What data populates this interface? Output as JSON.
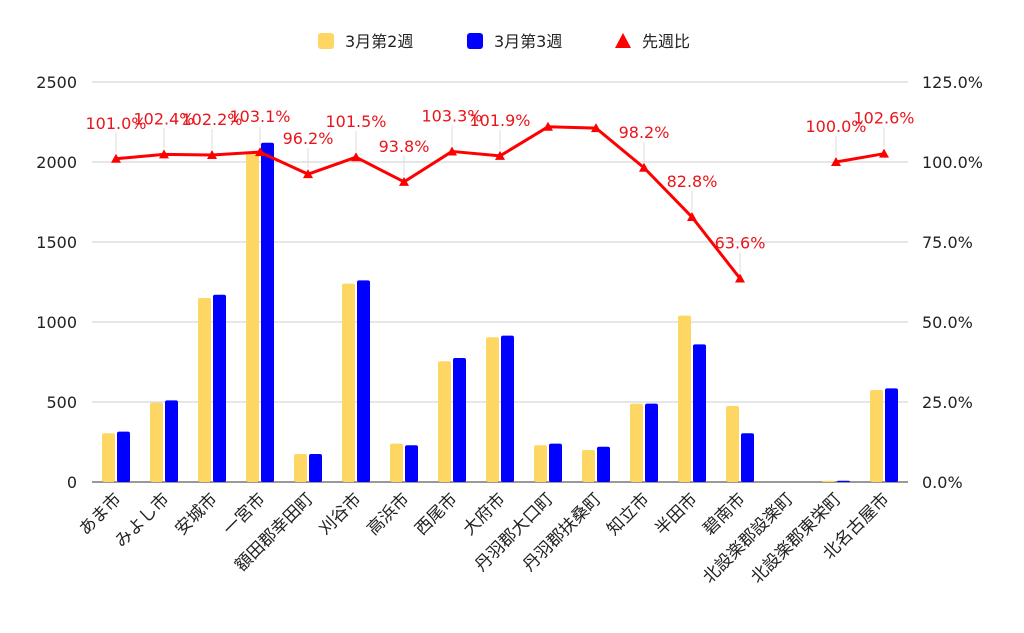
{
  "chart_data": {
    "type": "bar",
    "categories": [
      "あま市",
      "みよし市",
      "安城市",
      "一宮市",
      "額田郡幸田町",
      "刈谷市",
      "高浜市",
      "西尾市",
      "大府市",
      "丹羽郡大口町",
      "丹羽郡扶桑町",
      "知立市",
      "半田市",
      "碧南市",
      "北設楽郡設楽町",
      "北設楽郡東栄町",
      "北名古屋市"
    ],
    "series": [
      {
        "name": "3月第2週",
        "type": "bar",
        "axis": "left",
        "color": "#FDD663",
        "values": [
          305,
          495,
          1150,
          2060,
          175,
          1240,
          240,
          755,
          905,
          230,
          200,
          490,
          1040,
          475,
          0,
          8,
          575
        ]
      },
      {
        "name": "3月第3週",
        "type": "bar",
        "axis": "left",
        "color": "#0000FF",
        "values": [
          315,
          510,
          1170,
          2120,
          175,
          1260,
          230,
          775,
          915,
          240,
          220,
          490,
          860,
          305,
          0,
          8,
          585
        ]
      },
      {
        "name": "先週比",
        "type": "line",
        "axis": "right",
        "color": "#FF0000",
        "values": [
          101.0,
          102.4,
          102.2,
          103.1,
          96.2,
          101.5,
          93.8,
          103.3,
          101.9,
          111.0,
          110.6,
          98.2,
          82.8,
          63.6,
          null,
          100.0,
          102.6
        ],
        "labels": [
          "101.0%",
          "102.4%",
          "102.2%",
          "103.1%",
          "96.2%",
          "101.5%",
          "93.8%",
          "103.3%",
          "101.9%",
          "",
          "",
          "98.2%",
          "82.8%",
          "63.6%",
          "",
          "100.0%",
          "102.6%"
        ]
      }
    ],
    "y_left": {
      "min": 0,
      "max": 2500,
      "ticks": [
        "0",
        "500",
        "1000",
        "1500",
        "2000",
        "2500"
      ]
    },
    "y_right": {
      "min": 0,
      "max": 125,
      "ticks": [
        "0.0%",
        "25.0%",
        "50.0%",
        "75.0%",
        "100.0%",
        "125.0%"
      ]
    },
    "grid": true,
    "legend": {
      "position": "top",
      "items": [
        {
          "label": "3月第2週",
          "color": "#FDD663",
          "marker": "rounded-square"
        },
        {
          "label": "3月第3週",
          "color": "#0000FF",
          "marker": "rounded-square"
        },
        {
          "label": "先週比",
          "color": "#FF0000",
          "marker": "triangle"
        }
      ]
    }
  }
}
